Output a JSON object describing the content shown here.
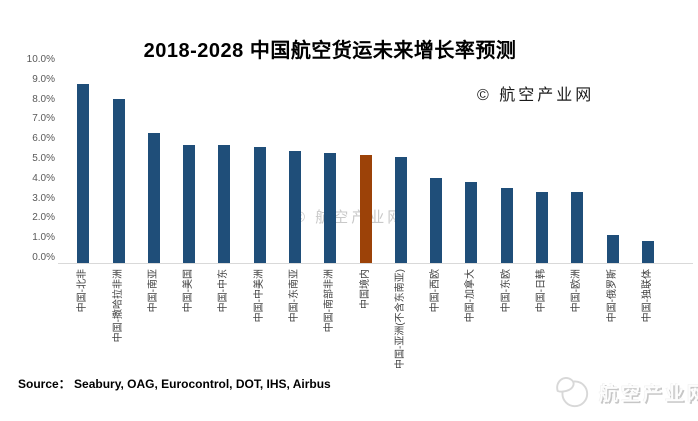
{
  "page": {
    "copyright_label": "© 航空产业网",
    "watermark_label": "© 航空产业网",
    "source_label": "Source： Seabury, OAG, Eurocontrol, DOT, IHS, Airbus",
    "logo_text": "航空产业网"
  },
  "chart_data": {
    "type": "bar",
    "title": "2018-2028 中国航空货运未来增长率预测",
    "categories": [
      "中国-北非",
      "中国-撒哈拉非洲",
      "中国-南亚",
      "中国-美国",
      "中国-中东",
      "中国-中美洲",
      "中国-东南亚",
      "中国-南部非洲",
      "中国境内",
      "中国-亚洲(不含东南亚)",
      "中国-西欧",
      "中国-加拿大",
      "中国-东欧",
      "中国-日韩",
      "中国-欧洲",
      "中国-俄罗斯",
      "中国-独联体"
    ],
    "values": [
      8.8,
      8.1,
      6.4,
      5.8,
      5.8,
      5.7,
      5.5,
      5.4,
      5.3,
      5.2,
      4.2,
      4.0,
      3.7,
      3.5,
      3.5,
      1.4,
      1.1
    ],
    "unit": "%",
    "highlight_index": 8,
    "highlight_category": "中国境内",
    "bar_color": "#1F4E79",
    "highlight_color": "#9C4208",
    "ylim": [
      0,
      10
    ],
    "ytick_labels": [
      "10.0%",
      "9.0%",
      "8.0%",
      "7.0%",
      "6.0%",
      "5.0%",
      "4.0%",
      "3.0%",
      "2.0%",
      "1.0%",
      "0.0%"
    ],
    "grid": false,
    "legend": false,
    "x_label_rotation": -90
  }
}
